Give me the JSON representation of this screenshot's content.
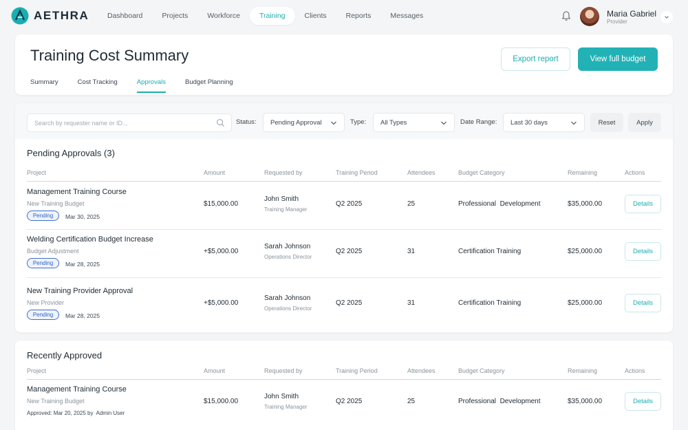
{
  "brand": {
    "name": "AETHRA",
    "accent": "#1aaeb0"
  },
  "nav": {
    "items": [
      {
        "label": "Dashboard"
      },
      {
        "label": "Projects"
      },
      {
        "label": "Workforce"
      },
      {
        "label": "Training",
        "active": true
      },
      {
        "label": "Clients"
      },
      {
        "label": "Reports"
      },
      {
        "label": "Messages"
      }
    ]
  },
  "user": {
    "name": "Maria Gabriel",
    "role": "Provider"
  },
  "header": {
    "title": "Training Cost Summary",
    "export_label": "Export report",
    "budget_label": "View full budget",
    "tabs": [
      {
        "label": "Summary"
      },
      {
        "label": "Cost Tracking"
      },
      {
        "label": "Approvals",
        "active": true
      },
      {
        "label": "Budget Planning"
      }
    ]
  },
  "filters": {
    "search_placeholder": "Search by requester name or ID...",
    "status_label": "Status:",
    "status_value": "Pending Approval",
    "type_label": "Type:",
    "type_value": "All Types",
    "date_label": "Date Range:",
    "date_value": "Last 30 days",
    "reset_label": "Reset",
    "apply_label": "Apply"
  },
  "columns": [
    "Project",
    "Amount",
    "Requested by",
    "Training Period",
    "Attendees",
    "Budget Category",
    "Remaining",
    "Actions"
  ],
  "pending": {
    "title": "Pending Approvals (3)",
    "rows": [
      {
        "title": "Management Training Course",
        "sub": "New Training Budget",
        "status": "Pending",
        "date": "Mar 30, 2025",
        "amount": "$15,000.00",
        "requester": "John Smith",
        "requester_role": "Training Manager",
        "period": "Q2 2025",
        "attendees": "25",
        "category": "Professional  Development",
        "remaining": "$35,000.00",
        "action": "Details"
      },
      {
        "title": "Welding Certification Budget Increase",
        "sub": "Budget Adjustment",
        "status": "Pending",
        "date": "Mar 28, 2025",
        "amount": "+$5,000.00",
        "requester": "Sarah Johnson",
        "requester_role": "Operations Director",
        "period": "Q2 2025",
        "attendees": "31",
        "category": "Certification Training",
        "remaining": "$25,000.00",
        "action": "Details"
      },
      {
        "title": "New Training Provider Approval",
        "sub": "New Provider",
        "status": "Pending",
        "date": "Mar 28, 2025",
        "amount": "+$5,000.00",
        "requester": "Sarah Johnson",
        "requester_role": "Operations Director",
        "period": "Q2 2025",
        "attendees": "31",
        "category": "Certification Training",
        "remaining": "$25,000.00",
        "action": "Details"
      }
    ]
  },
  "approved": {
    "title": "Recently Approved",
    "rows": [
      {
        "title": "Management Training Course",
        "sub": "New Training Budget",
        "note": "Approved: Mar 20, 2025 by  Admin User",
        "amount": "$15,000.00",
        "requester": "John Smith",
        "requester_role": "Training Manager",
        "period": "Q2 2025",
        "attendees": "25",
        "category": "Professional  Development",
        "remaining": "$35,000.00",
        "action": "Details"
      }
    ]
  }
}
